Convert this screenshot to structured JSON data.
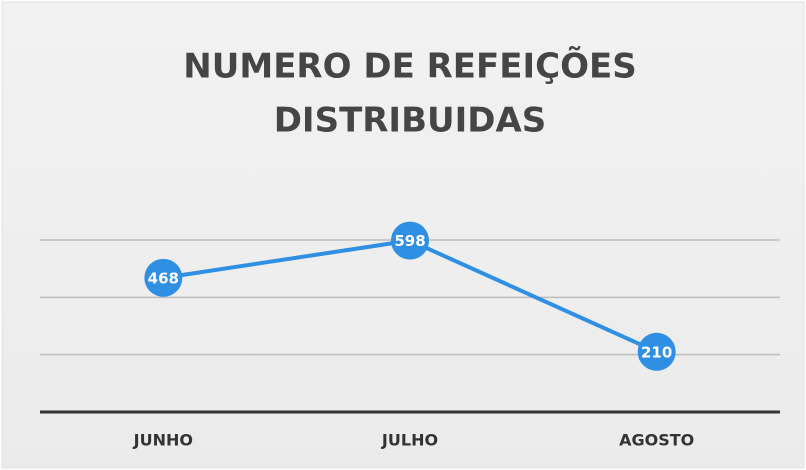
{
  "chart_data": {
    "type": "line",
    "title": [
      "NUMERO DE REFEIÇÕES",
      "DISTRIBUIDAS"
    ],
    "categories": [
      "JUNHO",
      "JULHO",
      "AGOSTO"
    ],
    "values": [
      468,
      598,
      210
    ],
    "color": "#2f8fe3",
    "ylim": [
      0,
      600
    ],
    "yticks": [
      0,
      200,
      400,
      600
    ],
    "grid": true
  }
}
